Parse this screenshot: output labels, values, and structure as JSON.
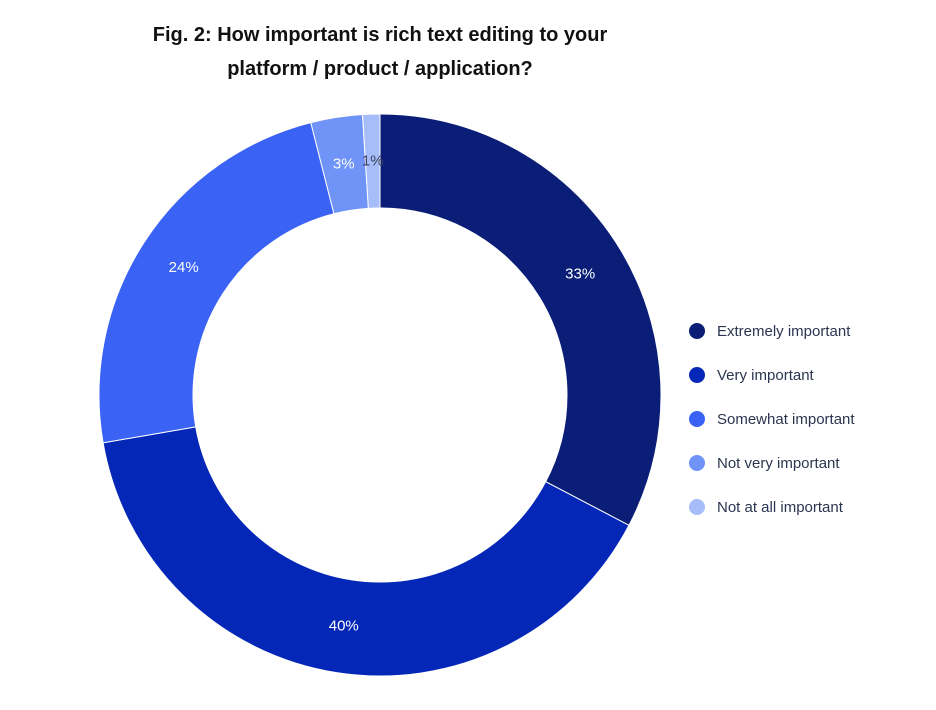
{
  "chart_data": {
    "type": "pie",
    "title": "Fig. 2: How important is rich text editing to your platform / product / application?",
    "title_lines": [
      "Fig. 2: How important is rich text editing to your",
      "platform / product / application?"
    ],
    "style": "donut",
    "categories": [
      "Extremely important",
      "Very important",
      "Somewhat important",
      "Not very important",
      "Not at all important"
    ],
    "values": [
      33,
      40,
      24,
      3,
      1
    ],
    "data_labels": [
      "33%",
      "40%",
      "24%",
      "3%",
      "1%"
    ],
    "colors": [
      "#0a1e78",
      "#0527b8",
      "#3a62f5",
      "#6f93f7",
      "#a7bdf9"
    ],
    "label_colors": [
      "#ffffff",
      "#ffffff",
      "#ffffff",
      "#ffffff",
      "#3a3f5c"
    ],
    "legend_position": "right"
  }
}
